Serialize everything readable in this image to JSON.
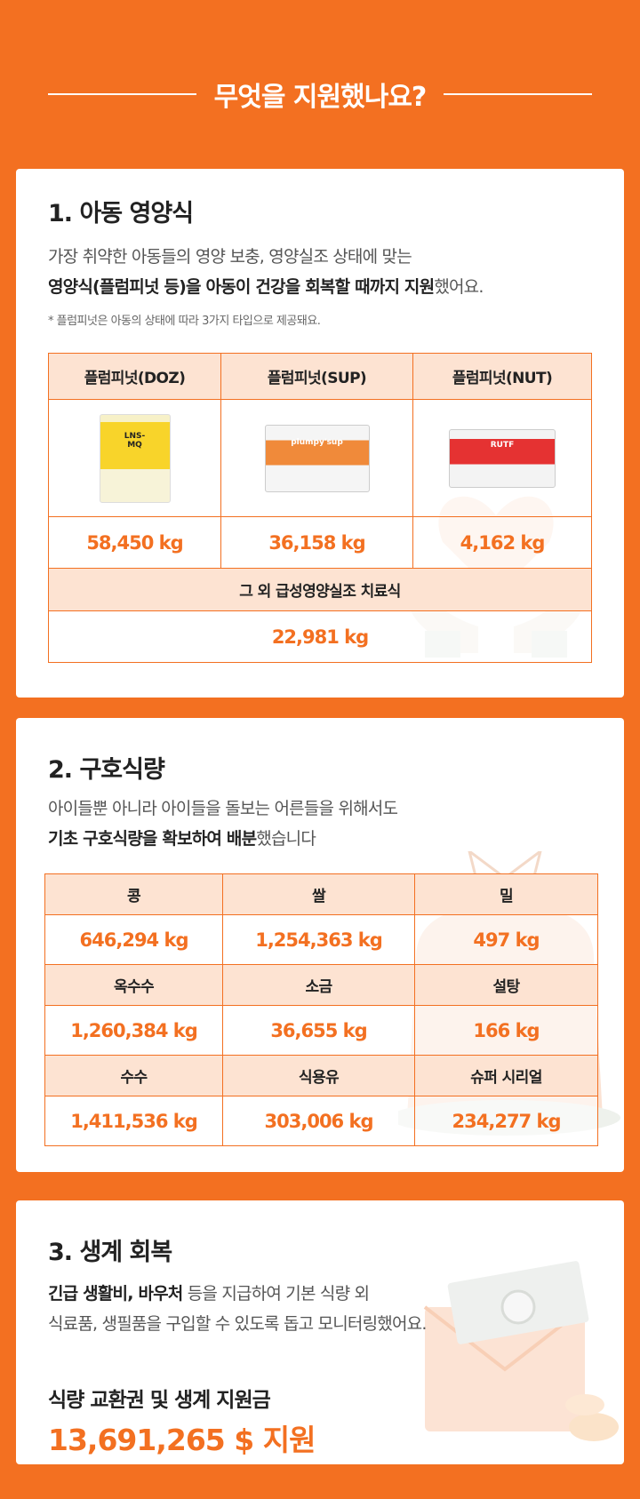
{
  "title": "무엇을 지원했나요?",
  "section1": {
    "heading": "1. 아동 영양식",
    "desc_line1": "가장 취약한 아동들의 영양 보충, 영양실조 상태에 맞는",
    "desc_line2_bold": "영양식(플럼피넛 등)을 아동이 건강을 회복할 때까지 지원",
    "desc_line2_rest": "했어요.",
    "note": "* 플럼피넛은 아동의 상태에 따라 3가지 타입으로 제공돼요.",
    "products": [
      {
        "name": "플럼피넛(DOZ)",
        "pack_label": "LNS-MQ",
        "amount": "58,450 kg"
      },
      {
        "name": "플럼피넛(SUP)",
        "pack_label": "plumpy'sup",
        "amount": "36,158 kg"
      },
      {
        "name": "플럼피넛(NUT)",
        "pack_label": "RUTF",
        "amount": "4,162 kg"
      }
    ],
    "other_label": "그 외 급성영양실조 치료식",
    "other_amount": "22,981 kg"
  },
  "section2": {
    "heading": "2. 구호식량",
    "desc_line1": "아이들뿐 아니라 아이들을 돌보는 어른들을 위해서도",
    "desc_line2_bold": "기초 구호식량을 확보하여 배분",
    "desc_line2_rest": "했습니다",
    "rows": [
      [
        {
          "label": "콩",
          "amount": "646,294 kg"
        },
        {
          "label": "쌀",
          "amount": "1,254,363 kg"
        },
        {
          "label": "밀",
          "amount": "497 kg"
        }
      ],
      [
        {
          "label": "옥수수",
          "amount": "1,260,384 kg"
        },
        {
          "label": "소금",
          "amount": "36,655 kg"
        },
        {
          "label": "설탕",
          "amount": "166 kg"
        }
      ],
      [
        {
          "label": "수수",
          "amount": "1,411,536 kg"
        },
        {
          "label": "식용유",
          "amount": "303,006 kg"
        },
        {
          "label": "슈퍼 시리얼",
          "amount": "234,277 kg"
        }
      ]
    ]
  },
  "section3": {
    "heading": "3. 생계 회복",
    "desc_line1_bold": "긴급 생활비, 바우처",
    "desc_line1_rest": " 등을 지급하여 기본 식량 외",
    "desc_line2": "식료품, 생필품을 구입할 수 있도록 돕고 모니터링했어요.",
    "summary_title": "식량 교환권 및 생계 지원금",
    "summary_amount": "13,691,265 $ 지원"
  },
  "colors": {
    "accent": "#f37021",
    "header_cell": "#fde3d2"
  }
}
